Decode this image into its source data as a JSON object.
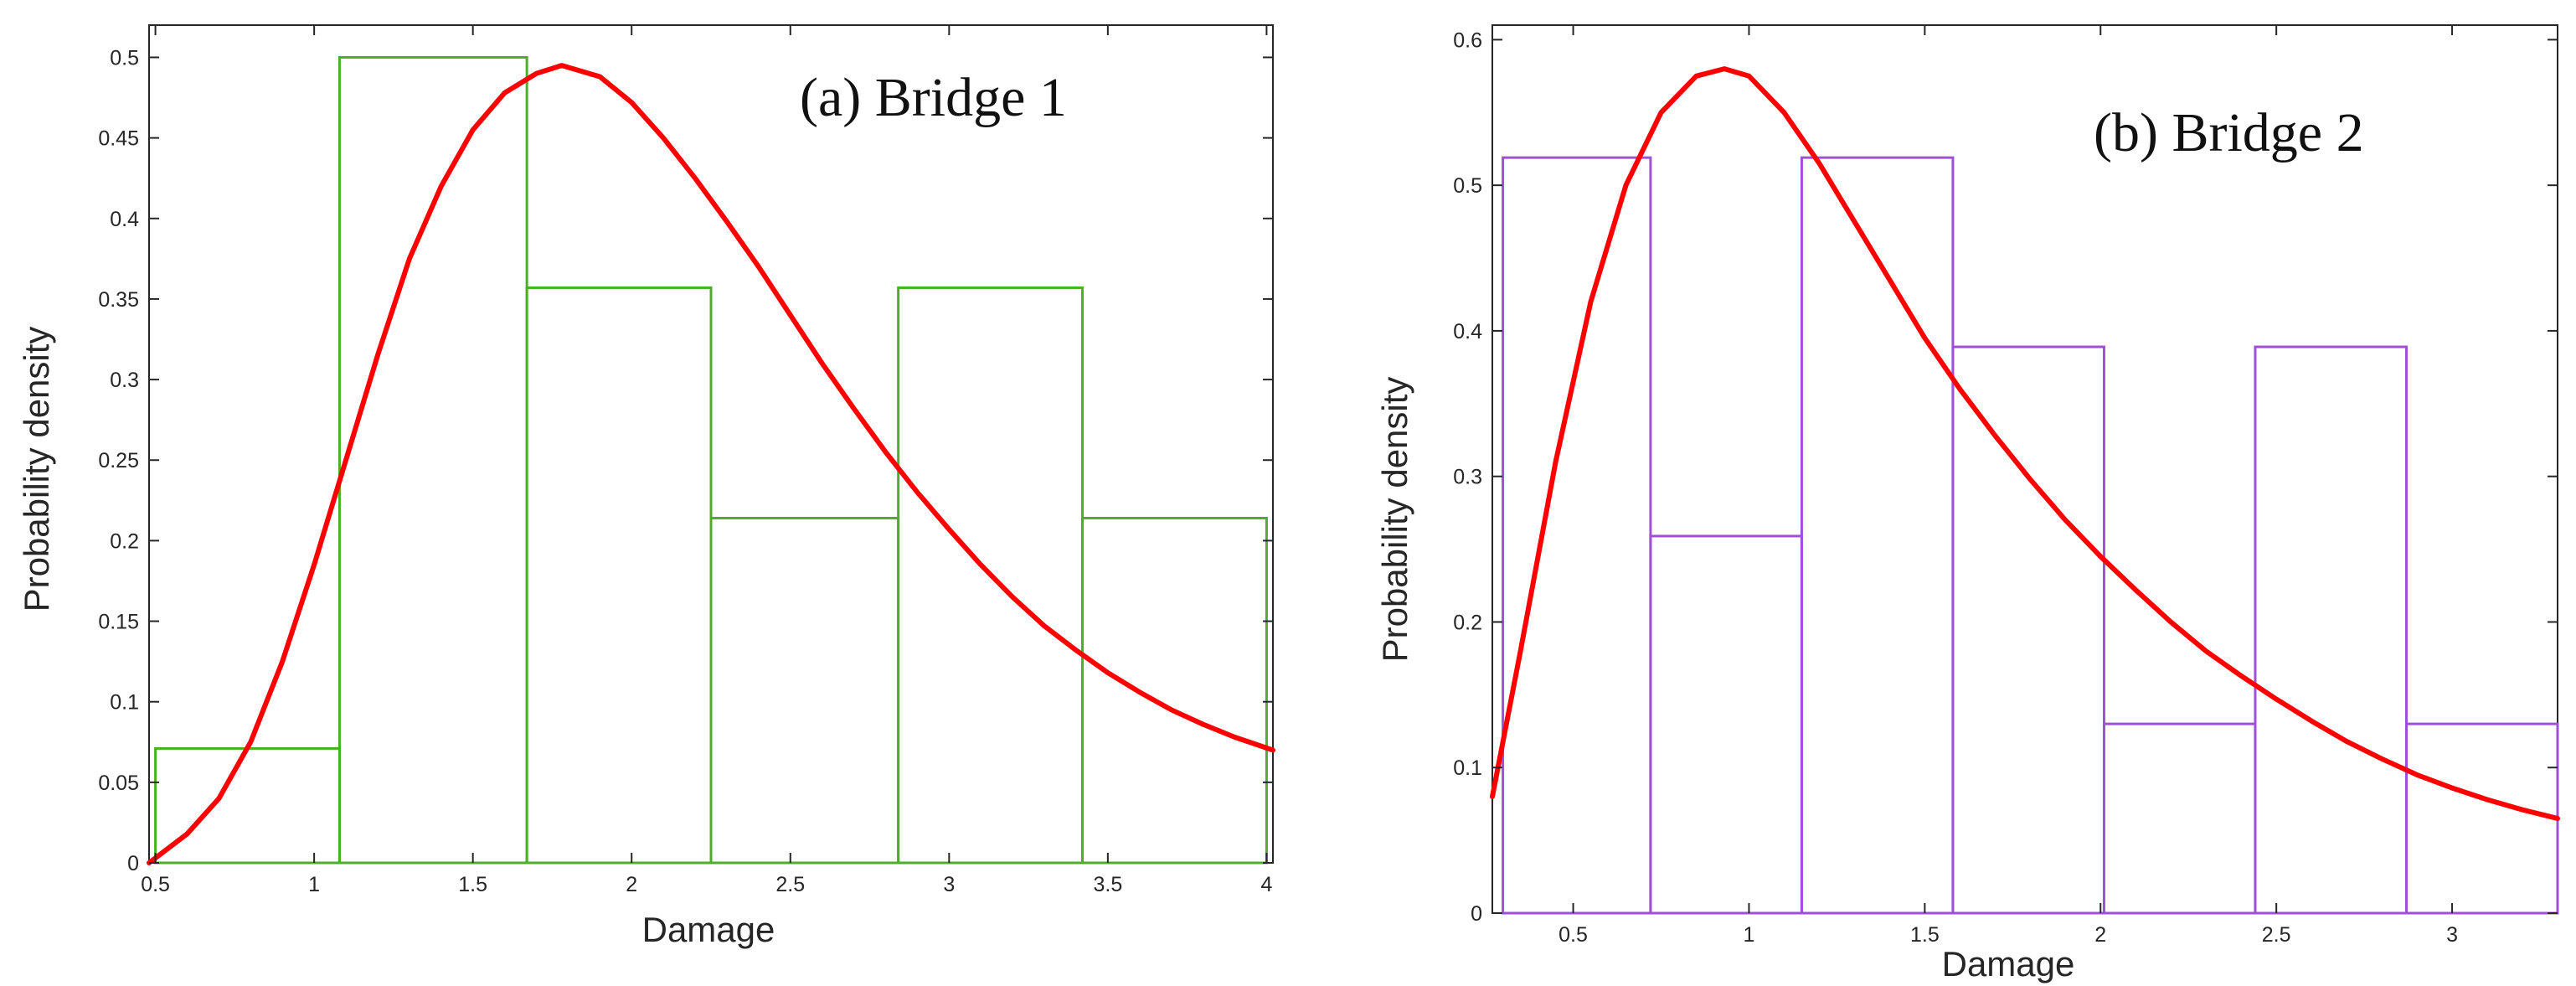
{
  "chart_data": [
    {
      "type": "bar",
      "title": "(a)  Bridge 1",
      "xlabel": "Damage",
      "ylabel": "Probability density",
      "xlim": [
        0.48,
        4.02
      ],
      "ylim": [
        0,
        0.52
      ],
      "xticks": [
        0.5,
        1,
        1.5,
        2,
        2.5,
        3,
        3.5,
        4
      ],
      "xtick_labels": [
        "0.5",
        "1",
        "1.5",
        "2",
        "2.5",
        "3",
        "3.5",
        "4"
      ],
      "yticks": [
        0,
        0.05,
        0.1,
        0.15,
        0.2,
        0.25,
        0.3,
        0.35,
        0.4,
        0.45,
        0.5
      ],
      "ytick_labels": [
        "0",
        "0.05",
        "0.1",
        "0.15",
        "0.2",
        "0.25",
        "0.3",
        "0.35",
        "0.4",
        "0.45",
        "0.5"
      ],
      "grid": false,
      "bar_color": "#4caf28",
      "curve_color": "#ff0000",
      "bins": [
        {
          "start": 0.5,
          "end": 1.08,
          "value": 0.071
        },
        {
          "start": 1.08,
          "end": 1.67,
          "value": 0.5
        },
        {
          "start": 1.67,
          "end": 2.25,
          "value": 0.357
        },
        {
          "start": 2.25,
          "end": 2.84,
          "value": 0.214
        },
        {
          "start": 2.84,
          "end": 3.42,
          "value": 0.357
        },
        {
          "start": 3.42,
          "end": 4.0,
          "value": 0.214
        }
      ],
      "curve": {
        "name": "",
        "x": [
          0.48,
          0.6,
          0.7,
          0.8,
          0.9,
          1.0,
          1.1,
          1.2,
          1.3,
          1.4,
          1.5,
          1.6,
          1.7,
          1.78,
          1.9,
          2.0,
          2.1,
          2.2,
          2.3,
          2.4,
          2.5,
          2.6,
          2.7,
          2.8,
          2.9,
          3.0,
          3.1,
          3.2,
          3.3,
          3.4,
          3.5,
          3.6,
          3.7,
          3.8,
          3.9,
          4.02
        ],
        "y": [
          0.0,
          0.018,
          0.04,
          0.075,
          0.125,
          0.185,
          0.25,
          0.315,
          0.375,
          0.42,
          0.455,
          0.478,
          0.49,
          0.495,
          0.488,
          0.472,
          0.45,
          0.425,
          0.398,
          0.37,
          0.34,
          0.31,
          0.282,
          0.255,
          0.23,
          0.207,
          0.185,
          0.165,
          0.147,
          0.132,
          0.118,
          0.106,
          0.095,
          0.086,
          0.078,
          0.07
        ]
      }
    },
    {
      "type": "bar",
      "title": "(b)  Bridge 2",
      "xlabel": "Damage",
      "ylabel": "Probability density",
      "xlim": [
        0.27,
        3.3
      ],
      "ylim": [
        0,
        0.61
      ],
      "xticks": [
        0.5,
        1,
        1.5,
        2,
        2.5,
        3
      ],
      "xtick_labels": [
        "0.5",
        "1",
        "1.5",
        "2",
        "2.5",
        "3"
      ],
      "yticks": [
        0,
        0.1,
        0.2,
        0.3,
        0.4,
        0.5,
        0.6
      ],
      "ytick_labels": [
        "0",
        "0.1",
        "0.2",
        "0.3",
        "0.4",
        "0.5",
        "0.6"
      ],
      "grid": false,
      "bar_color": "#a050d8",
      "curve_color": "#ff0000",
      "bins": [
        {
          "start": 0.3,
          "end": 0.72,
          "value": 0.519
        },
        {
          "start": 0.72,
          "end": 1.15,
          "value": 0.259
        },
        {
          "start": 1.15,
          "end": 1.58,
          "value": 0.519
        },
        {
          "start": 1.58,
          "end": 2.01,
          "value": 0.389
        },
        {
          "start": 2.01,
          "end": 2.44,
          "value": 0.13
        },
        {
          "start": 2.44,
          "end": 2.87,
          "value": 0.389
        },
        {
          "start": 2.87,
          "end": 3.3,
          "value": 0.13
        }
      ],
      "curve": {
        "name": "",
        "x": [
          0.27,
          0.35,
          0.45,
          0.55,
          0.65,
          0.75,
          0.85,
          0.93,
          1.0,
          1.1,
          1.2,
          1.3,
          1.4,
          1.5,
          1.6,
          1.7,
          1.8,
          1.9,
          2.0,
          2.1,
          2.2,
          2.3,
          2.4,
          2.5,
          2.6,
          2.7,
          2.8,
          2.9,
          3.0,
          3.1,
          3.2,
          3.3
        ],
        "y": [
          0.08,
          0.18,
          0.31,
          0.42,
          0.5,
          0.55,
          0.575,
          0.58,
          0.575,
          0.55,
          0.515,
          0.475,
          0.435,
          0.395,
          0.36,
          0.328,
          0.298,
          0.27,
          0.245,
          0.222,
          0.2,
          0.18,
          0.163,
          0.147,
          0.132,
          0.118,
          0.106,
          0.095,
          0.086,
          0.078,
          0.071,
          0.065
        ]
      }
    }
  ]
}
